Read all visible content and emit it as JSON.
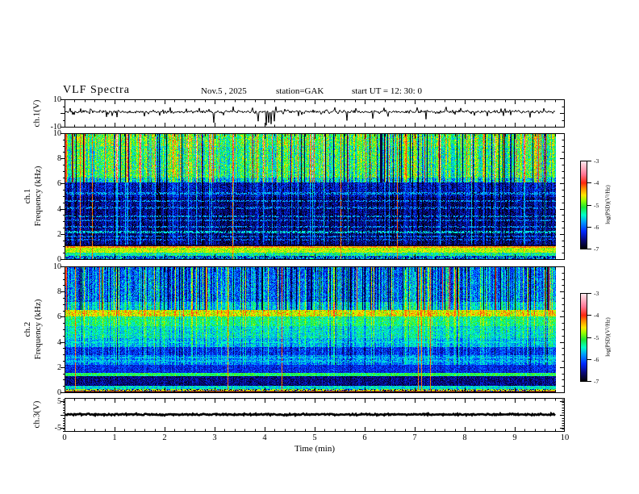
{
  "figure": {
    "title": "VLF Spectra",
    "date": "Nov.5 , 2025",
    "station": "station=GAK",
    "start_ut": "start UT =  12: 30: 0"
  },
  "x_axis": {
    "label": "Time  (min)",
    "min": 0,
    "max": 10,
    "tick_labels": [
      "0",
      "1",
      "2",
      "3",
      "4",
      "5",
      "6",
      "7",
      "8",
      "9",
      "10"
    ],
    "minor_step": 0.2,
    "data_end_min": 9.83
  },
  "colorbar": {
    "label": "log(PSD)(V²/Hz)",
    "tick_labels": [
      "-3",
      "-4",
      "-5",
      "-6",
      "-7"
    ],
    "vmin": -7,
    "vmax": -3
  },
  "colormap_stops": [
    [
      -7.0,
      [
        0,
        0,
        0
      ]
    ],
    [
      -6.6,
      [
        8,
        8,
        120
      ]
    ],
    [
      -6.2,
      [
        0,
        40,
        255
      ]
    ],
    [
      -5.8,
      [
        0,
        150,
        255
      ]
    ],
    [
      -5.45,
      [
        0,
        255,
        200
      ]
    ],
    [
      -5.1,
      [
        30,
        230,
        50
      ]
    ],
    [
      -4.8,
      [
        150,
        255,
        0
      ]
    ],
    [
      -4.55,
      [
        255,
        230,
        0
      ]
    ],
    [
      -4.25,
      [
        255,
        140,
        0
      ]
    ],
    [
      -4.0,
      [
        255,
        40,
        15
      ]
    ],
    [
      -3.6,
      [
        255,
        120,
        150
      ]
    ],
    [
      -3.0,
      [
        255,
        235,
        240
      ]
    ]
  ],
  "chart_data": [
    {
      "type": "line",
      "name": "ch1-waveform",
      "ylabel": "ch.1(V)",
      "ylim": [
        -10,
        10
      ],
      "ytick_labels": [
        "10",
        "-10"
      ],
      "ytick_values": [
        10,
        -10
      ],
      "baseline": 0.9,
      "noise_amp": 1.1,
      "minor_spike_prob": 0.1,
      "minor_spike_amp": 2.4,
      "seed": 11,
      "spikes": [
        {
          "t": 0.32,
          "v": 3.2
        },
        {
          "t": 1.05,
          "v": -3.0
        },
        {
          "t": 2.12,
          "v": 4.0
        },
        {
          "t": 2.7,
          "v": 3.6
        },
        {
          "t": 2.98,
          "v": -7.0
        },
        {
          "t": 3.37,
          "v": 4.6
        },
        {
          "t": 3.76,
          "v": 3.8
        },
        {
          "t": 3.87,
          "v": -6.0
        },
        {
          "t": 4.03,
          "v": -9.0
        },
        {
          "t": 4.08,
          "v": -7.0
        },
        {
          "t": 4.13,
          "v": -8.0
        },
        {
          "t": 4.19,
          "v": -6.0
        },
        {
          "t": 4.23,
          "v": 4.6
        },
        {
          "t": 5.4,
          "v": 4.0
        },
        {
          "t": 5.65,
          "v": -5.5
        },
        {
          "t": 6.16,
          "v": -4.0
        },
        {
          "t": 6.39,
          "v": 3.8
        },
        {
          "t": 7.23,
          "v": -4.5
        },
        {
          "t": 7.63,
          "v": 4.4
        },
        {
          "t": 7.92,
          "v": 3.6
        },
        {
          "t": 8.8,
          "v": 3.2
        },
        {
          "t": 9.3,
          "v": -3.2
        }
      ]
    },
    {
      "type": "heatmap",
      "name": "ch1-spectrogram",
      "ylabel_line1": "ch.1",
      "ylabel_line2": "Frequency (kHz)",
      "ylim": [
        0,
        10
      ],
      "ytick_labels": [
        "10",
        "8",
        "6",
        "4",
        "2",
        "0"
      ],
      "ytick_values": [
        10,
        8,
        6,
        4,
        2,
        0
      ],
      "seed": 7,
      "bands": [
        [
          9.0,
          10.01,
          -5.0,
          0.5
        ],
        [
          6.5,
          9.0,
          -5.15,
          0.5
        ],
        [
          6.1,
          6.5,
          -5.55,
          0.5
        ],
        [
          5.0,
          6.1,
          -6.4,
          0.4
        ],
        [
          1.2,
          5.0,
          -6.6,
          0.35
        ],
        [
          1.04,
          1.2,
          -6.8,
          0.2
        ],
        [
          0.92,
          1.04,
          -4.3,
          0.25
        ],
        [
          0.55,
          0.92,
          -4.75,
          0.3
        ],
        [
          0.3,
          0.55,
          -5.35,
          0.45
        ],
        [
          0.0,
          0.3,
          -6.0,
          0.8
        ]
      ],
      "hlines": [
        [
          5.25,
          -5.7,
          0.08,
          0.5
        ],
        [
          4.65,
          -5.75,
          0.07,
          0.5
        ],
        [
          4.1,
          -5.8,
          0.07,
          0.45
        ],
        [
          3.45,
          -5.7,
          0.07,
          0.5
        ],
        [
          3.1,
          -5.8,
          0.07,
          0.45
        ],
        [
          2.6,
          -5.75,
          0.07,
          0.5
        ],
        [
          2.2,
          -5.55,
          0.09,
          0.6
        ],
        [
          1.85,
          -5.8,
          0.07,
          0.45
        ],
        [
          1.55,
          -5.85,
          0.07,
          0.4
        ]
      ],
      "streak": {
        "gain_zones": [
          [
            6.1,
            10.01,
            1.0
          ],
          [
            1.2,
            6.1,
            0.5
          ],
          [
            0,
            1.2,
            0.12
          ]
        ],
        "amp": 0.55,
        "bright_prob": 0.09,
        "bright_add": 1.25,
        "dark_prob": 0.05,
        "dark_add": -1.5,
        "red_top_prob": 0.015,
        "red_full_prob": 0.008,
        "black_prob": 0.035,
        "top_f": 6.1
      },
      "left_edge_red_f": 6.1
    },
    {
      "type": "heatmap",
      "name": "ch2-spectrogram",
      "ylabel_line1": "ch.2",
      "ylabel_line2": "Frequency (kHz)",
      "ylim": [
        0,
        10
      ],
      "ytick_labels": [
        "10",
        "8",
        "6",
        "4",
        "2",
        "0"
      ],
      "ytick_values": [
        10,
        8,
        6,
        4,
        2,
        0
      ],
      "seed": 23,
      "bands": [
        [
          9.0,
          10.01,
          -6.0,
          0.4
        ],
        [
          7.2,
          9.0,
          -5.95,
          0.45
        ],
        [
          6.6,
          7.2,
          -5.6,
          0.35
        ],
        [
          6.05,
          6.6,
          -4.65,
          0.3
        ],
        [
          5.3,
          6.05,
          -5.25,
          0.35
        ],
        [
          4.3,
          5.3,
          -5.5,
          0.35
        ],
        [
          3.6,
          4.3,
          -5.7,
          0.35
        ],
        [
          2.95,
          3.6,
          -6.2,
          0.35
        ],
        [
          2.2,
          2.95,
          -5.9,
          0.35
        ],
        [
          1.55,
          2.2,
          -6.25,
          0.3
        ],
        [
          1.3,
          1.55,
          -5.2,
          0.3
        ],
        [
          0.55,
          1.3,
          -6.6,
          0.3
        ],
        [
          0.3,
          0.55,
          -5.55,
          0.35
        ],
        [
          0.0,
          0.3,
          -6.3,
          0.8
        ]
      ],
      "speck_band": [
        6.05,
        6.6,
        -4.1,
        0.1
      ],
      "hlines": [
        [
          4.0,
          -5.45,
          0.07,
          0.45
        ],
        [
          2.8,
          -5.6,
          0.07,
          0.5
        ],
        [
          2.5,
          -5.6,
          0.07,
          0.5
        ],
        [
          0.25,
          -4.75,
          0.07,
          0.55
        ],
        [
          0.12,
          -4.15,
          0.07,
          0.9
        ],
        [
          0.02,
          -6.9,
          0.05,
          1.0
        ]
      ],
      "streak": {
        "gain_zones": [
          [
            6.6,
            10.01,
            0.85
          ],
          [
            2.2,
            6.6,
            0.4
          ],
          [
            0,
            2.2,
            0.12
          ]
        ],
        "amp": 0.5,
        "bright_prob": 0.1,
        "bright_add": 1.1,
        "dark_prob": 0.05,
        "dark_add": -1.3,
        "red_top_prob": 0.006,
        "red_full_prob": 0.007,
        "black_prob": 0.03,
        "top_f": 6.6
      },
      "left_edge_red_f": 8.5
    },
    {
      "type": "line",
      "name": "ch3-waveform",
      "ylabel": "ch.3(V)",
      "ylim": [
        -6.3,
        6.3
      ],
      "ytick_labels": [
        "5",
        "-5"
      ],
      "ytick_values": [
        5,
        -5
      ],
      "baseline": 0.0,
      "noise_amp": 0.3,
      "minor_spike_prob": 0,
      "minor_spike_amp": 0,
      "thick": 2.6,
      "seed": 3,
      "spikes": []
    }
  ]
}
